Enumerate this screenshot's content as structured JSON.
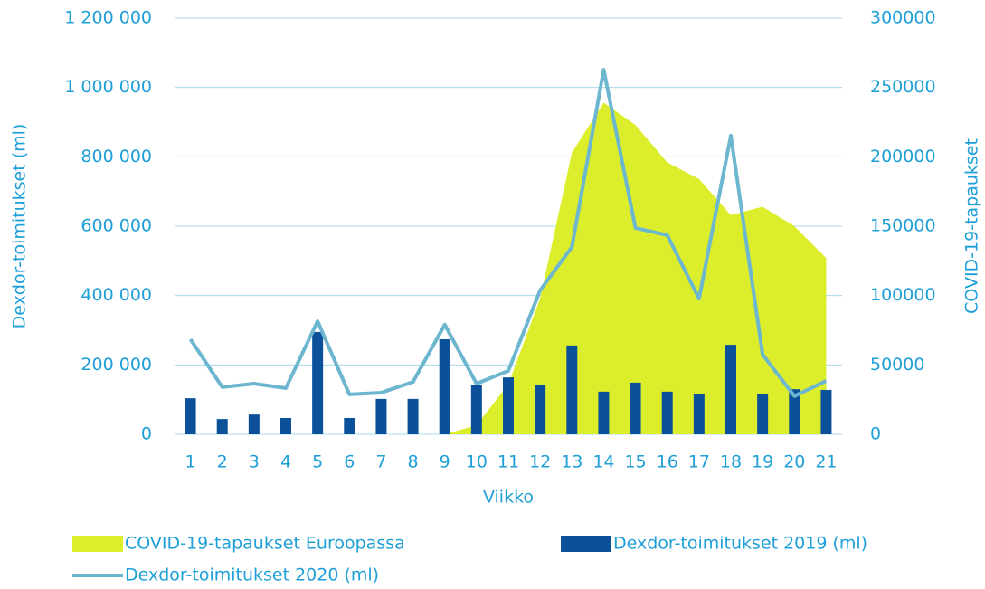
{
  "chart_data": {
    "type": "combo",
    "x_label": "Viikko",
    "y_label": "Dexdor-toimitukset (ml)",
    "y2_label": "COVID-19-tapaukset",
    "categories": [
      "1",
      "2",
      "3",
      "4",
      "5",
      "6",
      "7",
      "8",
      "9",
      "10",
      "11",
      "12",
      "13",
      "14",
      "15",
      "16",
      "17",
      "18",
      "19",
      "20",
      "21"
    ],
    "series": [
      {
        "name": "COVID-19-tapaukset Euroopassa",
        "type": "area",
        "axis": "y2",
        "color": "#dcee2b",
        "values": [
          0,
          0,
          0,
          0,
          0,
          0,
          0,
          0,
          0,
          6500,
          36000,
          98000,
          203000,
          239000,
          223000,
          196000,
          184000,
          158000,
          164000,
          150000,
          127000
        ]
      },
      {
        "name": "Dexdor-toimitukset 2019 (ml)",
        "type": "bar",
        "color": "#0b5199",
        "values": [
          104000,
          44000,
          57000,
          47000,
          295000,
          47000,
          102000,
          102000,
          274000,
          141000,
          164000,
          141000,
          256000,
          123000,
          149000,
          123000,
          117000,
          258000,
          117000,
          130000,
          128000
        ]
      },
      {
        "name": "Dexdor-toimitukset 2020 (ml)",
        "type": "line",
        "color": "#6db6d0",
        "values": [
          274000,
          136000,
          146000,
          133000,
          326000,
          115000,
          120000,
          151000,
          316000,
          146000,
          183000,
          415000,
          540000,
          1051000,
          595000,
          574000,
          391000,
          861000,
          230000,
          110000,
          154000
        ]
      }
    ],
    "ylim": [
      0,
      1200000
    ],
    "yticks": [
      0,
      {
        "value": 200000,
        "label": "200 000"
      },
      {
        "value": 400000,
        "label": "400 000"
      },
      {
        "value": 600000,
        "label": "600 000"
      },
      {
        "value": 800000,
        "label": "800 000"
      },
      {
        "value": 1000000,
        "label": "1 000 000"
      },
      {
        "value": 1200000,
        "label": "1 200 000"
      }
    ],
    "y2lim": [
      0,
      300000
    ],
    "y2ticks": [
      0,
      50000,
      100000,
      150000,
      200000,
      250000,
      300000
    ],
    "grid": true,
    "legend": "bottom"
  }
}
